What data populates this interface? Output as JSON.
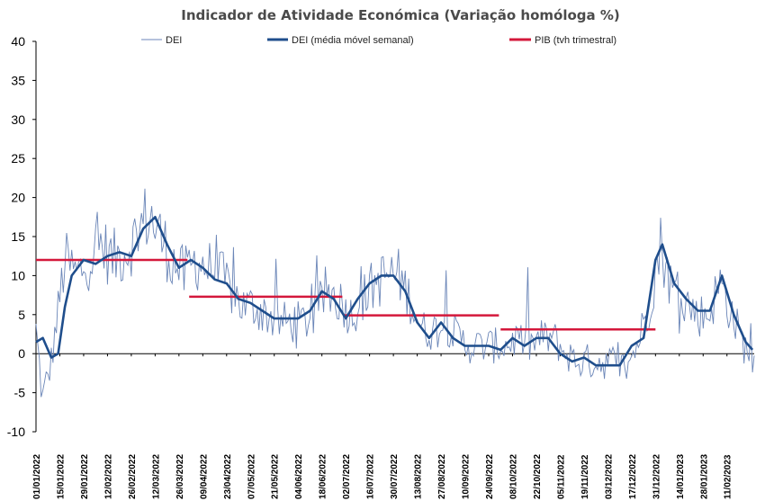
{
  "chart_data": {
    "type": "line",
    "title": "Indicador de Atividade Económica (Variação homóloga %)",
    "xlabel": "",
    "ylabel": "",
    "ylim": [
      -10,
      40
    ],
    "yticks": [
      "40",
      "35",
      "30",
      "25",
      "20",
      "15",
      "10",
      "5",
      "0",
      "-5",
      "-10"
    ],
    "x_start": "01/01/2022",
    "x_end": "27/02/2023",
    "x_ticks": [
      "01/01/2022",
      "15/01/2022",
      "29/01/2022",
      "12/02/2022",
      "26/02/2022",
      "12/03/2022",
      "26/03/2022",
      "09/04/2022",
      "23/04/2022",
      "07/05/2022",
      "21/05/2022",
      "04/06/2022",
      "18/06/2022",
      "02/07/2022",
      "16/07/2022",
      "30/07/2022",
      "13/08/2022",
      "27/08/2022",
      "10/09/2022",
      "24/09/2022",
      "08/10/2022",
      "22/10/2022",
      "05/11/2022",
      "19/11/2022",
      "03/12/2022",
      "17/12/2022",
      "31/12/2022",
      "14/01/2023",
      "28/01/2023",
      "11/02/2023"
    ],
    "legend": {
      "placement": "top",
      "items": [
        {
          "name": "DEI",
          "color": "#6b86b8"
        },
        {
          "name": "DEI (média móvel semanal)",
          "color": "#1f4e8c"
        },
        {
          "name": "PIB (tvh trimestral)",
          "color": "#d4183b"
        }
      ]
    },
    "series": [
      {
        "name": "DEI",
        "color": "#6b86b8",
        "anchors": [
          {
            "x": "01/01/2022",
            "y": 3
          },
          {
            "x": "05/01/2022",
            "y": -6
          },
          {
            "x": "10/01/2022",
            "y": -1
          },
          {
            "x": "18/01/2022",
            "y": 12
          },
          {
            "x": "25/01/2022",
            "y": 10
          },
          {
            "x": "01/02/2022",
            "y": 12
          },
          {
            "x": "08/02/2022",
            "y": 14
          },
          {
            "x": "15/02/2022",
            "y": 12
          },
          {
            "x": "22/02/2022",
            "y": 13
          },
          {
            "x": "01/03/2022",
            "y": 15
          },
          {
            "x": "08/03/2022",
            "y": 18
          },
          {
            "x": "15/03/2022",
            "y": 15
          },
          {
            "x": "22/03/2022",
            "y": 12
          },
          {
            "x": "29/03/2022",
            "y": 10
          },
          {
            "x": "05/04/2022",
            "y": 12
          },
          {
            "x": "12/04/2022",
            "y": 11
          },
          {
            "x": "19/04/2022",
            "y": 10
          },
          {
            "x": "26/04/2022",
            "y": 8
          },
          {
            "x": "03/05/2022",
            "y": 6
          },
          {
            "x": "10/05/2022",
            "y": 6
          },
          {
            "x": "17/05/2022",
            "y": 5
          },
          {
            "x": "24/05/2022",
            "y": 4
          },
          {
            "x": "31/05/2022",
            "y": 4
          },
          {
            "x": "07/06/2022",
            "y": 4
          },
          {
            "x": "14/06/2022",
            "y": 5
          },
          {
            "x": "21/06/2022",
            "y": 8
          },
          {
            "x": "28/06/2022",
            "y": 7
          },
          {
            "x": "05/07/2022",
            "y": 5
          },
          {
            "x": "12/07/2022",
            "y": 7
          },
          {
            "x": "19/07/2022",
            "y": 9
          },
          {
            "x": "26/07/2022",
            "y": 10
          },
          {
            "x": "02/08/2022",
            "y": 10
          },
          {
            "x": "09/08/2022",
            "y": 7
          },
          {
            "x": "16/08/2022",
            "y": 3
          },
          {
            "x": "23/08/2022",
            "y": 3
          },
          {
            "x": "30/08/2022",
            "y": 4
          },
          {
            "x": "06/09/2022",
            "y": 2
          },
          {
            "x": "13/09/2022",
            "y": 1
          },
          {
            "x": "20/09/2022",
            "y": 1
          },
          {
            "x": "27/09/2022",
            "y": 1
          },
          {
            "x": "04/10/2022",
            "y": 1
          },
          {
            "x": "11/10/2022",
            "y": 2
          },
          {
            "x": "18/10/2022",
            "y": 1
          },
          {
            "x": "25/10/2022",
            "y": 2
          },
          {
            "x": "01/11/2022",
            "y": 2
          },
          {
            "x": "08/11/2022",
            "y": 0
          },
          {
            "x": "15/11/2022",
            "y": -1
          },
          {
            "x": "22/11/2022",
            "y": -1
          },
          {
            "x": "29/11/2022",
            "y": -1
          },
          {
            "x": "06/12/2022",
            "y": -1
          },
          {
            "x": "13/12/2022",
            "y": -2
          },
          {
            "x": "20/12/2022",
            "y": 1
          },
          {
            "x": "27/12/2022",
            "y": 6
          },
          {
            "x": "03/01/2023",
            "y": 14
          },
          {
            "x": "10/01/2023",
            "y": 8
          },
          {
            "x": "17/01/2023",
            "y": 7
          },
          {
            "x": "24/01/2023",
            "y": 5
          },
          {
            "x": "31/01/2023",
            "y": 5
          },
          {
            "x": "07/02/2023",
            "y": 9
          },
          {
            "x": "14/02/2023",
            "y": 5
          },
          {
            "x": "21/02/2023",
            "y": 1
          },
          {
            "x": "27/02/2023",
            "y": -1
          }
        ]
      },
      {
        "name": "DEI (média móvel semanal)",
        "color": "#1f4e8c",
        "values": [
          {
            "x": "01/01/2022",
            "y": 1.5
          },
          {
            "x": "05/01/2022",
            "y": 2
          },
          {
            "x": "10/01/2022",
            "y": -0.5
          },
          {
            "x": "14/01/2022",
            "y": 0
          },
          {
            "x": "18/01/2022",
            "y": 6
          },
          {
            "x": "22/01/2022",
            "y": 10
          },
          {
            "x": "29/01/2022",
            "y": 12
          },
          {
            "x": "05/02/2022",
            "y": 11.5
          },
          {
            "x": "12/02/2022",
            "y": 12.5
          },
          {
            "x": "19/02/2022",
            "y": 13
          },
          {
            "x": "26/02/2022",
            "y": 12.5
          },
          {
            "x": "05/03/2022",
            "y": 16
          },
          {
            "x": "12/03/2022",
            "y": 17.5
          },
          {
            "x": "19/03/2022",
            "y": 14
          },
          {
            "x": "26/03/2022",
            "y": 11
          },
          {
            "x": "02/04/2022",
            "y": 12
          },
          {
            "x": "09/04/2022",
            "y": 11
          },
          {
            "x": "16/04/2022",
            "y": 9.5
          },
          {
            "x": "23/04/2022",
            "y": 9
          },
          {
            "x": "30/04/2022",
            "y": 7
          },
          {
            "x": "07/05/2022",
            "y": 6.5
          },
          {
            "x": "14/05/2022",
            "y": 5.5
          },
          {
            "x": "21/05/2022",
            "y": 4.5
          },
          {
            "x": "28/05/2022",
            "y": 4.5
          },
          {
            "x": "04/06/2022",
            "y": 4.5
          },
          {
            "x": "11/06/2022",
            "y": 5.5
          },
          {
            "x": "18/06/2022",
            "y": 8
          },
          {
            "x": "25/06/2022",
            "y": 7
          },
          {
            "x": "02/07/2022",
            "y": 4.5
          },
          {
            "x": "09/07/2022",
            "y": 7
          },
          {
            "x": "16/07/2022",
            "y": 9
          },
          {
            "x": "23/07/2022",
            "y": 10
          },
          {
            "x": "30/07/2022",
            "y": 10
          },
          {
            "x": "06/08/2022",
            "y": 8
          },
          {
            "x": "13/08/2022",
            "y": 4
          },
          {
            "x": "20/08/2022",
            "y": 2
          },
          {
            "x": "27/08/2022",
            "y": 4
          },
          {
            "x": "03/09/2022",
            "y": 2
          },
          {
            "x": "10/09/2022",
            "y": 1
          },
          {
            "x": "17/09/2022",
            "y": 1
          },
          {
            "x": "24/09/2022",
            "y": 1
          },
          {
            "x": "01/10/2022",
            "y": 0.5
          },
          {
            "x": "08/10/2022",
            "y": 2
          },
          {
            "x": "15/10/2022",
            "y": 1
          },
          {
            "x": "22/10/2022",
            "y": 2
          },
          {
            "x": "29/10/2022",
            "y": 2
          },
          {
            "x": "05/11/2022",
            "y": 0
          },
          {
            "x": "12/11/2022",
            "y": -1
          },
          {
            "x": "19/11/2022",
            "y": -0.5
          },
          {
            "x": "26/11/2022",
            "y": -1.5
          },
          {
            "x": "03/12/2022",
            "y": -1.5
          },
          {
            "x": "10/12/2022",
            "y": -1.5
          },
          {
            "x": "17/12/2022",
            "y": 1
          },
          {
            "x": "24/12/2022",
            "y": 2
          },
          {
            "x": "31/12/2022",
            "y": 12
          },
          {
            "x": "04/01/2023",
            "y": 14
          },
          {
            "x": "11/01/2023",
            "y": 9
          },
          {
            "x": "18/01/2023",
            "y": 7
          },
          {
            "x": "25/01/2023",
            "y": 5.5
          },
          {
            "x": "01/02/2023",
            "y": 5.5
          },
          {
            "x": "08/02/2023",
            "y": 10
          },
          {
            "x": "15/02/2023",
            "y": 5
          },
          {
            "x": "22/02/2023",
            "y": 1.5
          },
          {
            "x": "26/02/2023",
            "y": 0.5
          }
        ]
      },
      {
        "name": "PIB (tvh trimestral)",
        "color": "#d4183b",
        "segments": [
          {
            "x_start": "01/01/2022",
            "x_end": "31/03/2022",
            "y": 12
          },
          {
            "x_start": "01/04/2022",
            "x_end": "30/06/2022",
            "y": 7.3
          },
          {
            "x_start": "01/07/2022",
            "x_end": "30/09/2022",
            "y": 4.9
          },
          {
            "x_start": "01/10/2022",
            "x_end": "31/12/2022",
            "y": 3.1
          }
        ]
      }
    ]
  }
}
